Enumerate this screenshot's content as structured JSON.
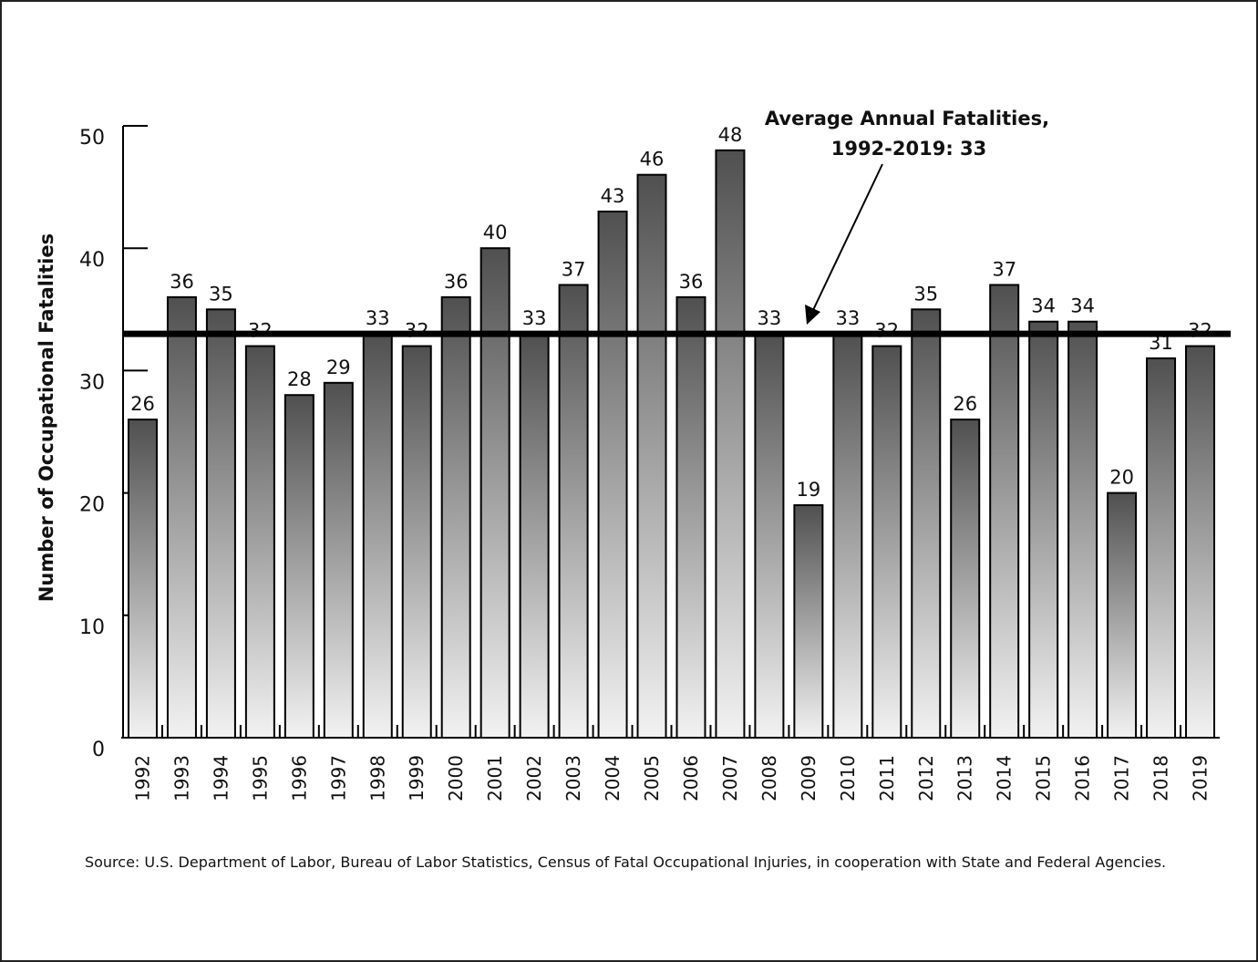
{
  "chart_data": {
    "type": "bar",
    "ylabel": "Number of Occupational Fatalities",
    "categories": [
      "1992",
      "1993",
      "1994",
      "1995",
      "1996",
      "1997",
      "1998",
      "1999",
      "2000",
      "2001",
      "2002",
      "2003",
      "2004",
      "2005",
      "2006",
      "2007",
      "2008",
      "2009",
      "2010",
      "2011",
      "2012",
      "2013",
      "2014",
      "2015",
      "2016",
      "2017",
      "2018",
      "2019"
    ],
    "values": [
      26,
      36,
      35,
      32,
      28,
      29,
      33,
      32,
      36,
      40,
      33,
      37,
      43,
      46,
      36,
      48,
      33,
      19,
      33,
      32,
      35,
      26,
      37,
      34,
      34,
      20,
      31,
      32
    ],
    "ylim": [
      0,
      50
    ],
    "yticks": [
      0,
      10,
      20,
      30,
      40,
      50
    ],
    "average": 33,
    "annotation": [
      "Average Annual Fatalities,",
      "1992-2019: 33"
    ],
    "source": "Source: U.S. Department of Labor, Bureau of Labor Statistics, Census of Fatal Occupational Injuries, in cooperation with State and Federal Agencies.",
    "color_top": "#505050",
    "color_bottom": "#f2f2f2"
  }
}
